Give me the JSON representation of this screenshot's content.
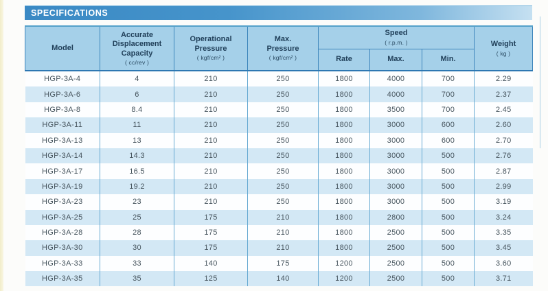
{
  "title": "SPECIFICATIONS",
  "table": {
    "header": {
      "model": "Model",
      "displacement": "Accurate\nDisplacement\nCapacity",
      "displacement_unit": "( cc/rev )",
      "operational_pressure": "Operational\nPressure",
      "operational_pressure_unit": "( kgf/cm² )",
      "max_pressure": "Max.\nPressure",
      "max_pressure_unit": "( kgf/cm² )",
      "speed": "Speed",
      "speed_unit": "( r.p.m. )",
      "speed_sub": [
        "Rate",
        "Max.",
        "Min."
      ],
      "weight": "Weight",
      "weight_unit": "( kg )"
    },
    "rows": [
      [
        "HGP-3A-4",
        "4",
        "210",
        "250",
        "1800",
        "4000",
        "700",
        "2.29"
      ],
      [
        "HGP-3A-6",
        "6",
        "210",
        "250",
        "1800",
        "4000",
        "700",
        "2.37"
      ],
      [
        "HGP-3A-8",
        "8.4",
        "210",
        "250",
        "1800",
        "3500",
        "700",
        "2.45"
      ],
      [
        "HGP-3A-11",
        "11",
        "210",
        "250",
        "1800",
        "3000",
        "600",
        "2.60"
      ],
      [
        "HGP-3A-13",
        "13",
        "210",
        "250",
        "1800",
        "3000",
        "600",
        "2.70"
      ],
      [
        "HGP-3A-14",
        "14.3",
        "210",
        "250",
        "1800",
        "3000",
        "500",
        "2.76"
      ],
      [
        "HGP-3A-17",
        "16.5",
        "210",
        "250",
        "1800",
        "3000",
        "500",
        "2.87"
      ],
      [
        "HGP-3A-19",
        "19.2",
        "210",
        "250",
        "1800",
        "3000",
        "500",
        "2.99"
      ],
      [
        "HGP-3A-23",
        "23",
        "210",
        "250",
        "1800",
        "3000",
        "500",
        "3.19"
      ],
      [
        "HGP-3A-25",
        "25",
        "175",
        "210",
        "1800",
        "2800",
        "500",
        "3.24"
      ],
      [
        "HGP-3A-28",
        "28",
        "175",
        "210",
        "1800",
        "2500",
        "500",
        "3.35"
      ],
      [
        "HGP-3A-30",
        "30",
        "175",
        "210",
        "1800",
        "2500",
        "500",
        "3.45"
      ],
      [
        "HGP-3A-33",
        "33",
        "140",
        "175",
        "1200",
        "2500",
        "500",
        "3.60"
      ],
      [
        "HGP-3A-35",
        "35",
        "125",
        "140",
        "1200",
        "2500",
        "500",
        "3.71"
      ]
    ]
  },
  "colors": {
    "title_bar_blue": "#3f8ec8",
    "header_bg": "#a5d0e9",
    "row_alt_blue": "#d3e8f5",
    "border_blue": "#3d85bb",
    "page_edge_yellow": "#f2edc9"
  }
}
